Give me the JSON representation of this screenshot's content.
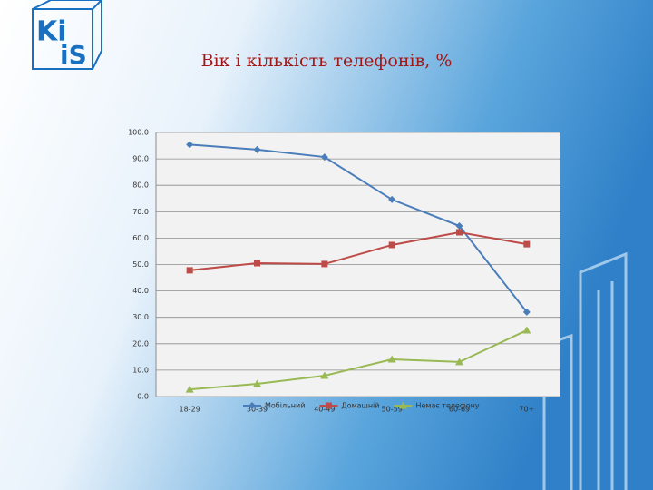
{
  "logo": [
    "Ki",
    "iS"
  ],
  "chart_data": {
    "type": "line",
    "title": "Вік і кількість телефонів, %",
    "categories": [
      "18-29",
      "30-39",
      "40-49",
      "50-59",
      "60-69",
      "70+"
    ],
    "series": [
      {
        "name": "Мобільний",
        "color": "#4a7ebb",
        "marker": "diamond",
        "values": [
          95.4,
          93.5,
          90.7,
          74.6,
          64.6,
          32.0
        ]
      },
      {
        "name": "Домашній",
        "color": "#be4b48",
        "marker": "square",
        "values": [
          47.8,
          50.5,
          50.2,
          57.4,
          62.2,
          57.7
        ]
      },
      {
        "name": "Немає телефону",
        "color": "#98b954",
        "marker": "triangle",
        "values": [
          2.7,
          4.8,
          7.9,
          14.1,
          13.1,
          25.1
        ]
      }
    ],
    "ylim": [
      0,
      100
    ],
    "yticks": [
      {
        "value": 0,
        "label": "0.0"
      },
      {
        "value": 10,
        "label": "10.0"
      },
      {
        "value": 20,
        "label": "20.0"
      },
      {
        "value": 30,
        "label": "30.0"
      },
      {
        "value": 40,
        "label": "40.0"
      },
      {
        "value": 50,
        "label": "50.0"
      },
      {
        "value": 60,
        "label": "60.0"
      },
      {
        "value": 70,
        "label": "70.0"
      },
      {
        "value": 80,
        "label": "80.0"
      },
      {
        "value": 90,
        "label": "90.0"
      },
      {
        "value": 100,
        "label": "100.0"
      }
    ],
    "grid": true,
    "legend": "bottom"
  }
}
